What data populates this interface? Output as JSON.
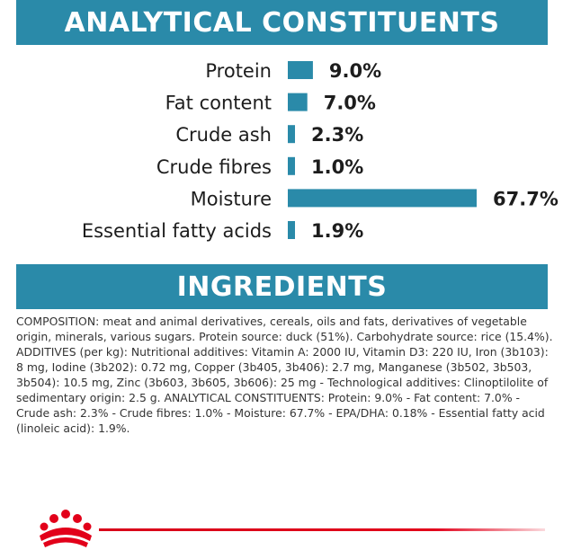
{
  "headers": {
    "analytical": "ANALYTICAL CONSTITUENTS",
    "ingredients": "INGREDIENTS"
  },
  "colors": {
    "banner": "#2a8aa9",
    "bar": "#2a8aa9",
    "brand_red": "#e2001a"
  },
  "chart_data": {
    "type": "bar",
    "orientation": "horizontal",
    "categories": [
      "Protein",
      "Fat content",
      "Crude ash",
      "Crude fibres",
      "Moisture",
      "Essential fatty acids"
    ],
    "values": [
      9.0,
      7.0,
      2.3,
      1.0,
      67.7,
      1.9
    ],
    "labels": [
      "9.0%",
      "7.0%",
      "2.3%",
      "1.0%",
      "67.7%",
      "1.9%"
    ],
    "unit": "%",
    "xlim": [
      0,
      67.7
    ],
    "grid": false,
    "legend": "none"
  },
  "composition_text": "COMPOSITION: meat and animal derivatives, cereals, oils and fats, derivatives of vegetable origin, minerals, various sugars. Protein source: duck (51%). Carbohydrate source: rice (15.4%). ADDITIVES (per kg): Nutritional additives: Vitamin A: 2000 IU, Vitamin D3: 220 IU, Iron (3b103): 8 mg, Iodine (3b202): 0.72 mg, Copper (3b405, 3b406): 2.7 mg, Manganese (3b502, 3b503, 3b504): 10.5 mg, Zinc (3b603, 3b605, 3b606): 25 mg - Technological additives: Clinoptilolite of sedimentary origin: 2.5 g. ANALYTICAL CONSTITUENTS: Protein: 9.0% - Fat content: 7.0% - Crude ash: 2.3% - Crude fibres: 1.0% - Moisture: 67.7% - EPA/DHA: 0.18% - Essential fatty acid (linoleic acid): 1.9%.",
  "footer": {
    "logo_icon": "royal-canin-crown-icon"
  }
}
